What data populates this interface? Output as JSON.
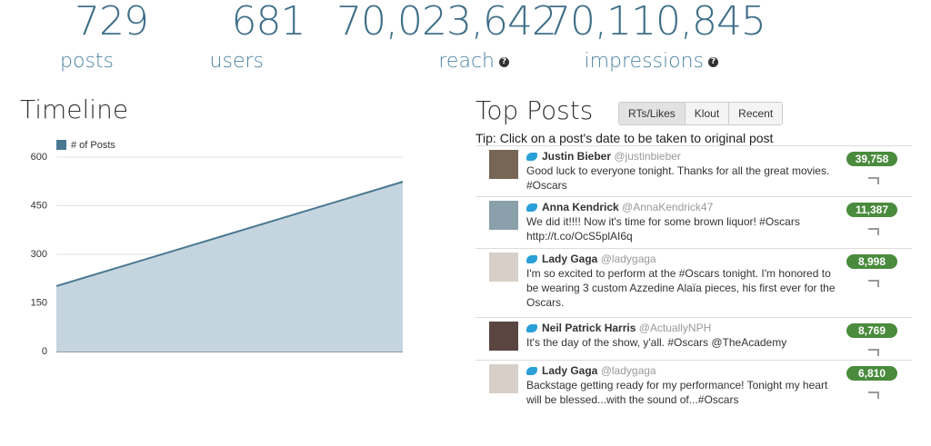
{
  "stats": [
    {
      "value": "729",
      "label": "posts"
    },
    {
      "value": "681",
      "label": "users"
    },
    {
      "value": "70,023,642",
      "label": "reach"
    },
    {
      "value": "70,110,845",
      "label": "impressions"
    }
  ],
  "timeline_title": "Timeline",
  "chart_data": {
    "type": "area",
    "series_name": "# of Posts",
    "color": "#4a7891",
    "fill": "#c5d5df",
    "categories": [
      null,
      null
    ],
    "values": [
      202,
      524
    ],
    "ylim": [
      0,
      600
    ],
    "yticks": [
      0,
      150,
      300,
      450,
      600
    ],
    "grid": true
  },
  "top_posts": {
    "title": "Top Posts",
    "tabs": [
      "RTs/Likes",
      "Klout",
      "Recent"
    ],
    "tip": "Tip: Click on a post's date to be taken to original post",
    "posts": [
      {
        "name": "Justin Bieber",
        "handle": "@justinbieber",
        "text": "Good luck to everyone tonight. Thanks for all the great movies. #Oscars",
        "count": "39,758"
      },
      {
        "name": "Anna Kendrick",
        "handle": "@AnnaKendrick47",
        "text": "We did it!!!! Now it's time for some brown liquor! #Oscars http://t.co/OcS5plAI6q",
        "count": "11,387"
      },
      {
        "name": "Lady Gaga",
        "handle": "@ladygaga",
        "text": "I'm so excited to perform at the #Oscars tonight. I'm honored to be wearing 3 custom Azzedine Alaïa pieces, his first ever for the Oscars.",
        "count": "8,998"
      },
      {
        "name": "Neil Patrick Harris",
        "handle": "@ActuallyNPH",
        "text": "It's the day of the show, y'all. #Oscars @TheAcademy",
        "count": "8,769"
      },
      {
        "name": "Lady Gaga",
        "handle": "@ladygaga",
        "text": "Backstage getting ready for my performance! Tonight my heart will be blessed...with the sound of...#Oscars",
        "count": "6,810"
      }
    ]
  }
}
